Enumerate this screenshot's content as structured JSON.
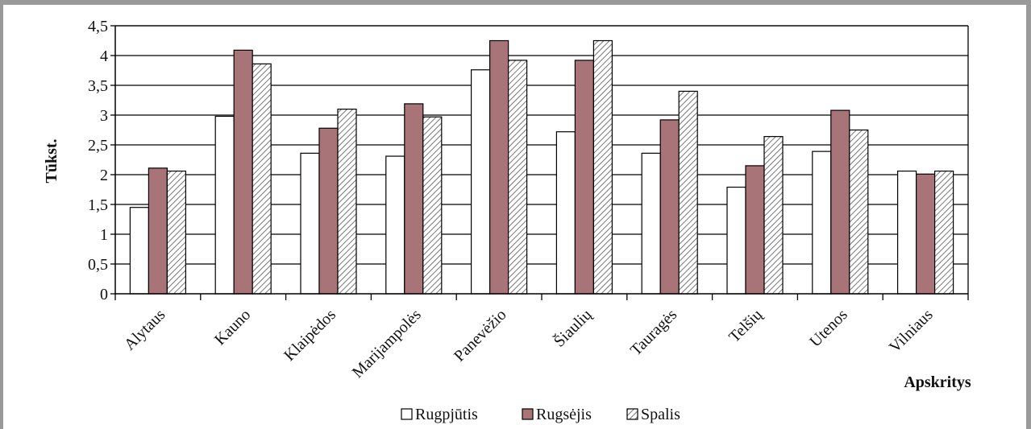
{
  "chart_data": {
    "type": "bar",
    "title": "",
    "xlabel": "Apskritys",
    "ylabel": "Tūkst.",
    "ylim": [
      0,
      4.5
    ],
    "yticks": [
      "0",
      "0,5",
      "1",
      "1,5",
      "2",
      "2,5",
      "3",
      "3,5",
      "4",
      "4,5"
    ],
    "grid": true,
    "legend_position": "bottom",
    "categories": [
      "Alytaus",
      "Kauno",
      "Klaipėdos",
      "Marijampolės",
      "Panevėžio",
      "Šiaulių",
      "Tauragės",
      "Telšių",
      "Utenos",
      "Vilniaus"
    ],
    "series": [
      {
        "name": "Rugpjūtis",
        "color": "#ffffff",
        "pattern": "none",
        "values": [
          1.45,
          2.98,
          2.36,
          2.31,
          3.76,
          2.72,
          2.36,
          1.79,
          2.39,
          2.06
        ]
      },
      {
        "name": "Rugsėjis",
        "color": "#a87478",
        "pattern": "none",
        "values": [
          2.11,
          4.09,
          2.78,
          3.19,
          4.25,
          3.92,
          2.92,
          2.15,
          3.08,
          2.01
        ]
      },
      {
        "name": "Spalis",
        "color": "#ffffff",
        "pattern": "diagonal-hatch",
        "values": [
          2.06,
          3.86,
          3.1,
          2.97,
          3.92,
          4.25,
          3.4,
          2.64,
          2.75,
          2.06
        ]
      }
    ]
  }
}
